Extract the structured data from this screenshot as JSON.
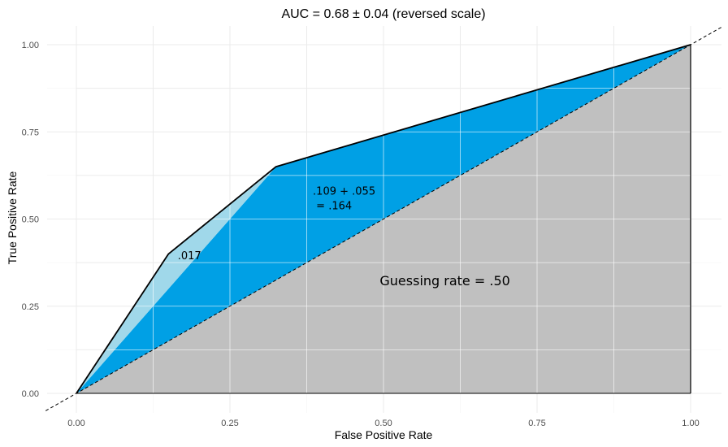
{
  "chart_data": {
    "type": "area",
    "title": "AUC = 0.68 ± 0.04 (reversed scale)",
    "xlabel": "False Positive Rate",
    "ylabel": "True Positive Rate",
    "xlim": [
      0,
      1
    ],
    "ylim": [
      0,
      1
    ],
    "x_ticks": [
      "0.00",
      "0.25",
      "0.50",
      "0.75",
      "1.00"
    ],
    "y_ticks": [
      "0.00",
      "0.25",
      "0.50",
      "0.75",
      "1.00"
    ],
    "grid": true,
    "roc_curve": [
      {
        "x": 0.0,
        "y": 0.0
      },
      {
        "x": 0.15,
        "y": 0.4
      },
      {
        "x": 0.325,
        "y": 0.65
      },
      {
        "x": 1.0,
        "y": 1.0
      }
    ],
    "regions": [
      {
        "name": "guessing",
        "color": "#c0c0c0",
        "label": "Guessing rate = .50",
        "label_at": [
          0.6,
          0.31
        ]
      },
      {
        "name": "blue",
        "color": "#00a0e5",
        "label_lines": [
          ".109 + .055",
          " = .164"
        ],
        "label_at": [
          0.385,
          0.57
        ]
      },
      {
        "name": "lightblue",
        "color": "#a0d8ea",
        "label": ".017",
        "label_at": [
          0.165,
          0.385
        ]
      }
    ],
    "diagonal": {
      "style": "dashed",
      "from": [
        -0.05,
        -0.05
      ],
      "to": [
        1.05,
        1.05
      ]
    }
  }
}
